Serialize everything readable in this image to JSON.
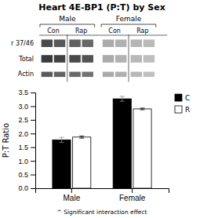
{
  "chart_data": [
    {
      "type": "blot",
      "row_labels": [
        "r 37/46",
        "Total",
        "Actin"
      ],
      "groups": [
        "Male",
        "Female"
      ],
      "conditions": [
        "Con",
        "Rap"
      ],
      "colors": [
        [
          "#4a4a4a",
          "#585858",
          "#606060",
          "#686868",
          "#aaaaaa",
          "#b0b0b0",
          "#b5b5b5",
          "#bababa"
        ],
        [
          "#3a3a3a",
          "#424242",
          "#4a4a4a",
          "#525252",
          "#aaaaaa",
          "#b2b2b2",
          "#b8b8b8",
          "#bebebe"
        ],
        [
          "#5a5a5a",
          "#626262",
          "#6a6a6a",
          "#727272",
          "#aaaaaa",
          "#b0b0b0",
          "#b8b8b8",
          "#c0c0c0"
        ]
      ]
    },
    {
      "type": "bar",
      "title": "Heart 4E-BP1 (P:T) by Sex",
      "ylabel": "P:T Ratio",
      "categories": [
        "Male",
        "Female"
      ],
      "series": [
        {
          "name": "C",
          "color": "#000000",
          "values": [
            1.77,
            3.27
          ],
          "errors": [
            0.09,
            0.09
          ]
        },
        {
          "name": "R",
          "color": "#ffffff",
          "values": [
            1.87,
            2.9
          ],
          "errors": [
            0.04,
            0.03
          ]
        }
      ],
      "ylim": [
        0,
        3.5
      ],
      "yticks": [
        {
          "value": 0.0,
          "label": "0.0"
        },
        0.5,
        {
          "value": 1.0,
          "label": "1.0"
        },
        1.5,
        {
          "value": 2.0,
          "label": "2.0"
        },
        2.5,
        {
          "value": 3.0,
          "label": "3.0"
        },
        3.5
      ],
      "grid": false,
      "legend": "right",
      "annotations": [
        "^ Significant interaction effect"
      ]
    }
  ]
}
